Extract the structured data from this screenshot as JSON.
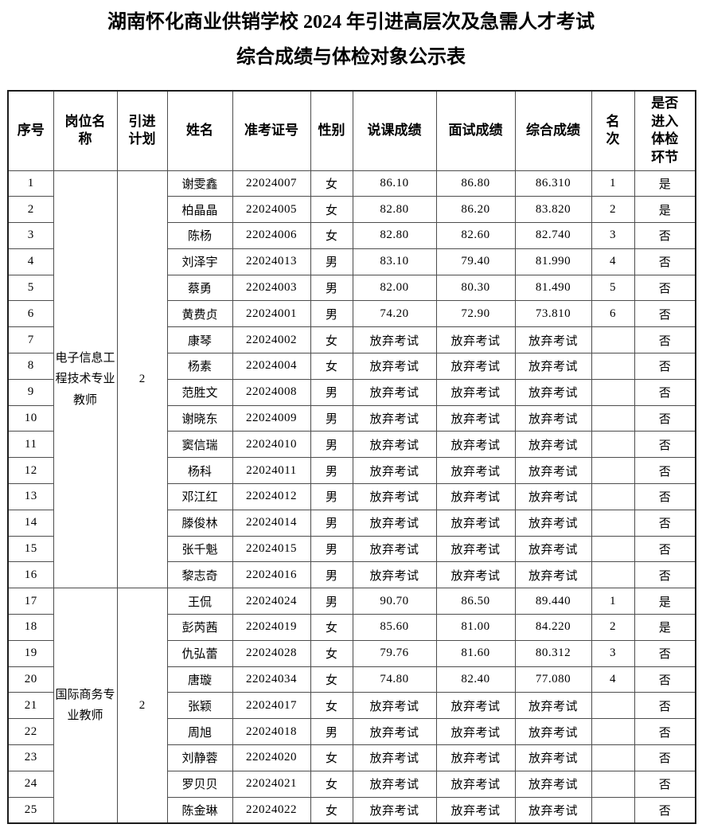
{
  "title": {
    "line1": "湖南怀化商业供销学校 2024 年引进高层次及急需人才考试",
    "line2": "综合成绩与体检对象公示表"
  },
  "colors": {
    "text": "#000000",
    "border_inner": "#4d4d4d",
    "border_outer": "#1c1c1c",
    "background": "#ffffff"
  },
  "table": {
    "headers": {
      "serial": "序号",
      "position": "岗位名\n称",
      "plan": "引进\n计划",
      "name": "姓名",
      "exam_id": "准考证号",
      "gender": "性别",
      "lecture_score": "说课成绩",
      "interview_score": "面试成绩",
      "composite_score": "综合成绩",
      "rank": "名\n次",
      "medical_check": "是否\n进入\n体检\n环节"
    },
    "groups": [
      {
        "position": "电子信息工程技术专业教师",
        "plan": "2",
        "rows": [
          {
            "no": "1",
            "name": "谢雯鑫",
            "exam_id": "22024007",
            "gender": "女",
            "lecture": "86.10",
            "interview": "86.80",
            "composite": "86.310",
            "rank": "1",
            "medical": "是"
          },
          {
            "no": "2",
            "name": "柏晶晶",
            "exam_id": "22024005",
            "gender": "女",
            "lecture": "82.80",
            "interview": "86.20",
            "composite": "83.820",
            "rank": "2",
            "medical": "是"
          },
          {
            "no": "3",
            "name": "陈杨",
            "exam_id": "22024006",
            "gender": "女",
            "lecture": "82.80",
            "interview": "82.60",
            "composite": "82.740",
            "rank": "3",
            "medical": "否"
          },
          {
            "no": "4",
            "name": "刘泽宇",
            "exam_id": "22024013",
            "gender": "男",
            "lecture": "83.10",
            "interview": "79.40",
            "composite": "81.990",
            "rank": "4",
            "medical": "否"
          },
          {
            "no": "5",
            "name": "蔡勇",
            "exam_id": "22024003",
            "gender": "男",
            "lecture": "82.00",
            "interview": "80.30",
            "composite": "81.490",
            "rank": "5",
            "medical": "否"
          },
          {
            "no": "6",
            "name": "黄费贞",
            "exam_id": "22024001",
            "gender": "男",
            "lecture": "74.20",
            "interview": "72.90",
            "composite": "73.810",
            "rank": "6",
            "medical": "否"
          },
          {
            "no": "7",
            "name": "康琴",
            "exam_id": "22024002",
            "gender": "女",
            "lecture": "放弃考试",
            "interview": "放弃考试",
            "composite": "放弃考试",
            "rank": "",
            "medical": "否"
          },
          {
            "no": "8",
            "name": "杨素",
            "exam_id": "22024004",
            "gender": "女",
            "lecture": "放弃考试",
            "interview": "放弃考试",
            "composite": "放弃考试",
            "rank": "",
            "medical": "否"
          },
          {
            "no": "9",
            "name": "范胜文",
            "exam_id": "22024008",
            "gender": "男",
            "lecture": "放弃考试",
            "interview": "放弃考试",
            "composite": "放弃考试",
            "rank": "",
            "medical": "否"
          },
          {
            "no": "10",
            "name": "谢晓东",
            "exam_id": "22024009",
            "gender": "男",
            "lecture": "放弃考试",
            "interview": "放弃考试",
            "composite": "放弃考试",
            "rank": "",
            "medical": "否"
          },
          {
            "no": "11",
            "name": "窦信瑞",
            "exam_id": "22024010",
            "gender": "男",
            "lecture": "放弃考试",
            "interview": "放弃考试",
            "composite": "放弃考试",
            "rank": "",
            "medical": "否"
          },
          {
            "no": "12",
            "name": "杨科",
            "exam_id": "22024011",
            "gender": "男",
            "lecture": "放弃考试",
            "interview": "放弃考试",
            "composite": "放弃考试",
            "rank": "",
            "medical": "否"
          },
          {
            "no": "13",
            "name": "邓江红",
            "exam_id": "22024012",
            "gender": "男",
            "lecture": "放弃考试",
            "interview": "放弃考试",
            "composite": "放弃考试",
            "rank": "",
            "medical": "否"
          },
          {
            "no": "14",
            "name": "滕俊林",
            "exam_id": "22024014",
            "gender": "男",
            "lecture": "放弃考试",
            "interview": "放弃考试",
            "composite": "放弃考试",
            "rank": "",
            "medical": "否"
          },
          {
            "no": "15",
            "name": "张千魁",
            "exam_id": "22024015",
            "gender": "男",
            "lecture": "放弃考试",
            "interview": "放弃考试",
            "composite": "放弃考试",
            "rank": "",
            "medical": "否"
          },
          {
            "no": "16",
            "name": "黎志奇",
            "exam_id": "22024016",
            "gender": "男",
            "lecture": "放弃考试",
            "interview": "放弃考试",
            "composite": "放弃考试",
            "rank": "",
            "medical": "否"
          }
        ]
      },
      {
        "position": "国际商务专业教师",
        "plan": "2",
        "rows": [
          {
            "no": "17",
            "name": "王侃",
            "exam_id": "22024024",
            "gender": "男",
            "lecture": "90.70",
            "interview": "86.50",
            "composite": "89.440",
            "rank": "1",
            "medical": "是"
          },
          {
            "no": "18",
            "name": "彭芮茜",
            "exam_id": "22024019",
            "gender": "女",
            "lecture": "85.60",
            "interview": "81.00",
            "composite": "84.220",
            "rank": "2",
            "medical": "是"
          },
          {
            "no": "19",
            "name": "仇弘蕾",
            "exam_id": "22024028",
            "gender": "女",
            "lecture": "79.76",
            "interview": "81.60",
            "composite": "80.312",
            "rank": "3",
            "medical": "否"
          },
          {
            "no": "20",
            "name": "唐璇",
            "exam_id": "22024034",
            "gender": "女",
            "lecture": "74.80",
            "interview": "82.40",
            "composite": "77.080",
            "rank": "4",
            "medical": "否"
          },
          {
            "no": "21",
            "name": "张颖",
            "exam_id": "22024017",
            "gender": "女",
            "lecture": "放弃考试",
            "interview": "放弃考试",
            "composite": "放弃考试",
            "rank": "",
            "medical": "否"
          },
          {
            "no": "22",
            "name": "周旭",
            "exam_id": "22024018",
            "gender": "男",
            "lecture": "放弃考试",
            "interview": "放弃考试",
            "composite": "放弃考试",
            "rank": "",
            "medical": "否"
          },
          {
            "no": "23",
            "name": "刘静蓉",
            "exam_id": "22024020",
            "gender": "女",
            "lecture": "放弃考试",
            "interview": "放弃考试",
            "composite": "放弃考试",
            "rank": "",
            "medical": "否"
          },
          {
            "no": "24",
            "name": "罗贝贝",
            "exam_id": "22024021",
            "gender": "女",
            "lecture": "放弃考试",
            "interview": "放弃考试",
            "composite": "放弃考试",
            "rank": "",
            "medical": "否"
          },
          {
            "no": "25",
            "name": "陈金琳",
            "exam_id": "22024022",
            "gender": "女",
            "lecture": "放弃考试",
            "interview": "放弃考试",
            "composite": "放弃考试",
            "rank": "",
            "medical": "否"
          }
        ]
      }
    ]
  }
}
